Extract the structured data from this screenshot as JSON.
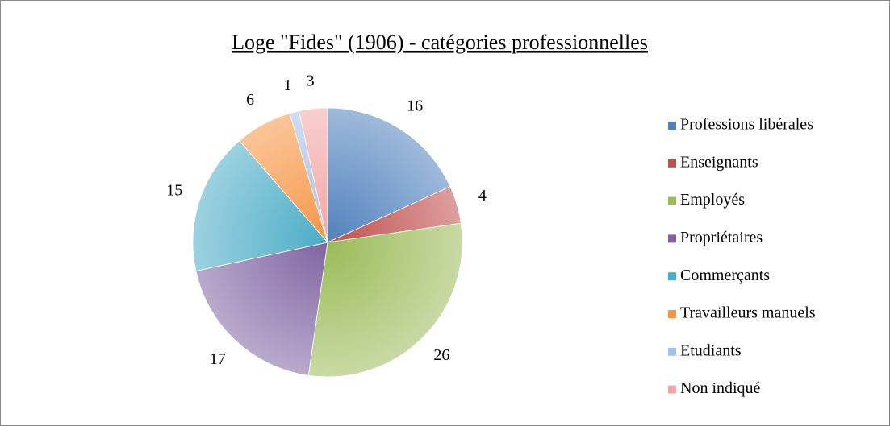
{
  "chart_data": {
    "type": "pie",
    "title": "Loge \"Fides\" (1906) - catégories professionnelles",
    "categories": [
      "Professions libérales",
      "Enseignants",
      "Employés",
      "Propriétaires",
      "Commerçants",
      "Travailleurs manuels",
      "Etudiants",
      "Non indiqué"
    ],
    "values": [
      16,
      4,
      26,
      17,
      15,
      6,
      1,
      3
    ],
    "colors": [
      "#4f81bd",
      "#c0504d",
      "#9bbb59",
      "#8064a2",
      "#4bacc6",
      "#f79646",
      "#a7c0e6",
      "#f2a7a5"
    ],
    "legend": "right"
  }
}
